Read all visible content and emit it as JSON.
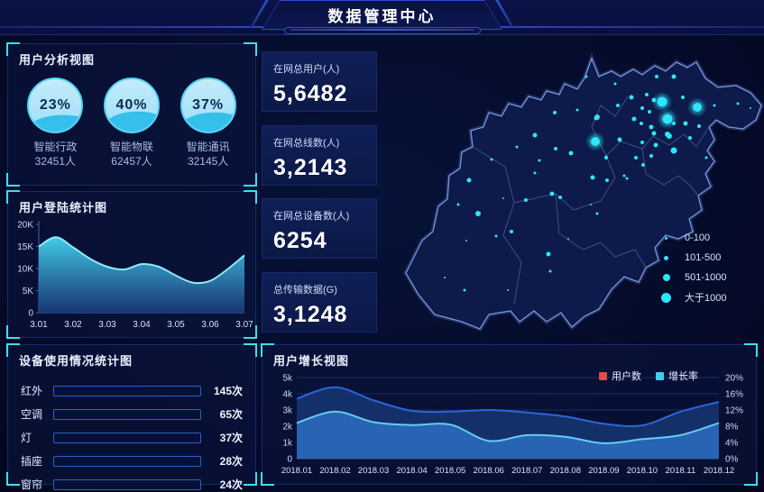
{
  "header": {
    "title": "数据管理中心"
  },
  "panels": {
    "user_analysis": {
      "title": "用户分析视图"
    },
    "login_stats": {
      "title": "用户登陆统计图"
    },
    "device_usage": {
      "title": "设备使用情况统计图"
    },
    "user_growth": {
      "title": "用户增长视图"
    }
  },
  "gauges": [
    {
      "percent": "23%",
      "label": "智能行政",
      "count": "32451人",
      "fill_pct": 44
    },
    {
      "percent": "40%",
      "label": "智能物联",
      "count": "62457人",
      "fill_pct": 52
    },
    {
      "percent": "37%",
      "label": "智能通讯",
      "count": "32145人",
      "fill_pct": 50
    }
  ],
  "stats": [
    {
      "label": "在网总用户(人)",
      "value": "5,6482"
    },
    {
      "label": "在网总线数(人)",
      "value": "3,2143"
    },
    {
      "label": "在网总设备数(人)",
      "value": "6254"
    },
    {
      "label": "总传输数据(G)",
      "value": "3,1248"
    }
  ],
  "map": {
    "dot_color": "#2ee6f7",
    "legend": [
      {
        "label": "0-100",
        "size": 3
      },
      {
        "label": "101-500",
        "size": 5
      },
      {
        "label": "501-1000",
        "size": 8
      },
      {
        "label": "大于1000",
        "size": 11
      }
    ],
    "dots": [
      [
        195,
        80,
        2
      ],
      [
        220,
        77,
        1.5
      ],
      [
        242,
        85,
        3
      ],
      [
        173,
        105,
        2.5
      ],
      [
        153,
        118,
        1.5
      ],
      [
        196,
        120,
        2
      ],
      [
        213,
        125,
        2.5
      ],
      [
        178,
        133,
        1.5
      ],
      [
        173,
        147,
        1.5
      ],
      [
        252,
        130,
        2
      ],
      [
        285,
        130,
        2
      ],
      [
        302,
        128,
        2
      ],
      [
        237,
        152,
        2.5
      ],
      [
        253,
        155,
        2
      ],
      [
        275,
        153,
        1.5
      ],
      [
        192,
        170,
        2.5
      ],
      [
        201,
        174,
        2
      ],
      [
        163,
        177,
        2
      ],
      [
        138,
        175,
        1
      ],
      [
        110,
        192,
        3
      ],
      [
        97,
        222,
        1
      ],
      [
        130,
        217,
        1.5
      ],
      [
        147,
        212,
        2
      ],
      [
        210,
        220,
        1
      ],
      [
        242,
        192,
        1.5
      ],
      [
        235,
        182,
        1
      ],
      [
        188,
        237,
        2.5
      ],
      [
        190,
        256,
        1.5
      ],
      [
        73,
        263,
        1
      ],
      [
        95,
        277,
        1.5
      ],
      [
        143,
        277,
        1
      ],
      [
        100,
        155,
        2.5
      ],
      [
        125,
        132,
        1.5
      ],
      [
        88,
        182,
        1.5
      ],
      [
        230,
        40,
        1.5
      ],
      [
        262,
        48,
        1.5
      ],
      [
        308,
        40,
        2
      ],
      [
        327,
        40,
        2.5
      ],
      [
        280,
        63,
        2.5
      ],
      [
        297,
        60,
        2
      ],
      [
        305,
        66,
        2.5
      ],
      [
        337,
        63,
        2
      ],
      [
        372,
        72,
        1.5
      ],
      [
        265,
        72,
        2
      ],
      [
        292,
        75,
        2
      ],
      [
        300,
        79,
        2
      ],
      [
        241,
        86,
        2.5
      ],
      [
        283,
        87,
        2.5
      ],
      [
        291,
        92,
        2
      ],
      [
        302,
        96,
        2.5
      ],
      [
        327,
        92,
        2
      ],
      [
        340,
        92,
        2.5
      ],
      [
        305,
        103,
        2.5
      ],
      [
        320,
        104,
        3
      ],
      [
        267,
        110,
        2.5
      ],
      [
        292,
        113,
        2
      ],
      [
        307,
        116,
        2.5
      ],
      [
        322,
        106,
        3
      ],
      [
        327,
        122,
        3.5
      ],
      [
        252,
        129,
        1.5
      ],
      [
        272,
        150,
        1.5
      ],
      [
        293,
        138,
        2
      ],
      [
        363,
        130,
        1.5
      ],
      [
        345,
        108,
        2
      ],
      [
        355,
        95,
        2
      ],
      [
        398,
        70,
        1.5
      ],
      [
        412,
        75,
        1
      ]
    ],
    "glow_dots": [
      [
        314,
        68,
        5.5
      ],
      [
        353,
        74,
        5
      ],
      [
        320,
        87,
        5.5
      ],
      [
        240,
        112,
        5
      ]
    ]
  },
  "chart_data": [
    {
      "id": "login",
      "type": "area",
      "title": "用户登陆统计图",
      "x": [
        "3.01",
        "3.02",
        "3.03",
        "3.04",
        "3.05",
        "3.06",
        "3.07"
      ],
      "x_step": 0.005,
      "values_k": [
        15.0,
        17.1,
        14.8,
        12.2,
        10.4,
        9.8,
        11.0,
        10.4,
        8.4,
        6.8,
        7.2,
        9.8,
        13.0
      ],
      "yticks": [
        "0",
        "5K",
        "10K",
        "15K",
        "20K"
      ],
      "ylim": [
        0,
        20
      ],
      "grid": false,
      "colors": {
        "line": "#8feafc",
        "fill_top": "#46d5f1",
        "fill_bottom": "#1a3c80"
      }
    },
    {
      "id": "device",
      "type": "bar",
      "title": "设备使用情况统计图",
      "categories": [
        "红外",
        "空调",
        "灯",
        "插座",
        "窗帘"
      ],
      "values": [
        145,
        65,
        37,
        28,
        24
      ],
      "unit": "次",
      "display_percent": [
        80,
        62,
        47,
        37,
        31
      ],
      "colors": [
        "#2e6ae6",
        "#4b8fd8",
        "#4b8fd8",
        "#52a0dc",
        "#52a0dc"
      ]
    },
    {
      "id": "growth",
      "type": "area-dual",
      "title": "用户增长视图",
      "categories": [
        "2018.01",
        "2018.02",
        "2018.03",
        "2018.04",
        "2018.05",
        "2018.06",
        "2018.07",
        "2018.08",
        "2018.09",
        "2018.10",
        "2018.11",
        "2018.12"
      ],
      "series": [
        {
          "name": "用户数",
          "axis": "left",
          "values_k": [
            3.7,
            4.4,
            3.6,
            2.95,
            2.9,
            3.0,
            2.85,
            2.6,
            2.15,
            2.05,
            2.9,
            3.5
          ],
          "line": "#2b66d9",
          "fill": "#16336e"
        },
        {
          "name": "增长率",
          "axis": "right",
          "values_pct": [
            8.8,
            11.6,
            9.0,
            8.3,
            8.4,
            4.4,
            5.8,
            5.4,
            3.8,
            4.8,
            5.8,
            8.8
          ],
          "line": "#63cdf2",
          "fill": "#2b69bd"
        }
      ],
      "yticks_left": [
        "0",
        "1k",
        "2k",
        "3k",
        "4k",
        "5k"
      ],
      "yticks_right": [
        "0%",
        "4%",
        "8%",
        "12%",
        "16%",
        "20%"
      ],
      "ylim_left": [
        0,
        5
      ],
      "ylim_right": [
        0,
        20
      ],
      "grid": true,
      "legend": [
        {
          "label": "用户数",
          "color": "#e24c4c"
        },
        {
          "label": "增长率",
          "color": "#3fd0f0"
        }
      ]
    }
  ]
}
